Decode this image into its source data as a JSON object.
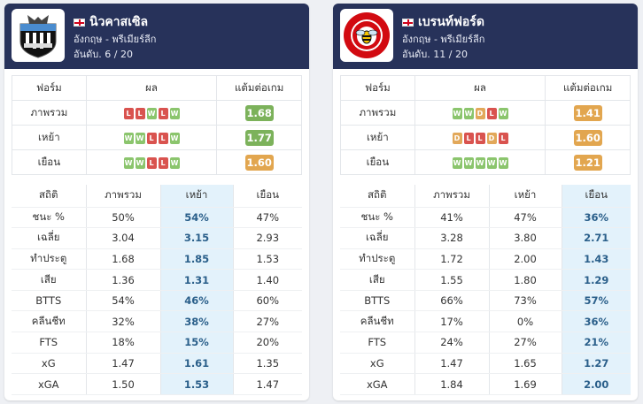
{
  "teams": [
    {
      "name": "นิวคาสเซิล",
      "country_league": "อังกฤษ - พรีเมียร์ลีก",
      "rank": "อันดับ. 6 / 20",
      "logo": "newcastle-crest-icon",
      "form_headers": [
        "ฟอร์ม",
        "ผล",
        "แต้มต่อเกม"
      ],
      "form_rows": [
        {
          "label": "ภาพรวม",
          "results": [
            "L",
            "L",
            "W",
            "L",
            "W"
          ],
          "ppg": "1.68",
          "ppg_color": "green"
        },
        {
          "label": "เหย้า",
          "results": [
            "W",
            "W",
            "L",
            "L",
            "W"
          ],
          "ppg": "1.77",
          "ppg_color": "green"
        },
        {
          "label": "เยือน",
          "results": [
            "W",
            "W",
            "L",
            "L",
            "W"
          ],
          "ppg": "1.60",
          "ppg_color": "orange"
        }
      ],
      "stat_headers": [
        "สถิติ",
        "ภาพรวม",
        "เหย้า",
        "เยือน"
      ],
      "highlight_col": 2,
      "stat_rows": [
        [
          "ชนะ %",
          "50%",
          "54%",
          "47%"
        ],
        [
          "เฉลี่ย",
          "3.04",
          "3.15",
          "2.93"
        ],
        [
          "ทำประตู",
          "1.68",
          "1.85",
          "1.53"
        ],
        [
          "เสีย",
          "1.36",
          "1.31",
          "1.40"
        ],
        [
          "BTTS",
          "54%",
          "46%",
          "60%"
        ],
        [
          "คลีนชีท",
          "32%",
          "38%",
          "27%"
        ],
        [
          "FTS",
          "18%",
          "15%",
          "20%"
        ],
        [
          "xG",
          "1.47",
          "1.61",
          "1.35"
        ],
        [
          "xGA",
          "1.50",
          "1.53",
          "1.47"
        ]
      ]
    },
    {
      "name": "เบรนท์ฟอร์ด",
      "country_league": "อังกฤษ - พรีเมียร์ลีก",
      "rank": "อันดับ. 11 / 20",
      "logo": "brentford-bee-crest-icon",
      "form_headers": [
        "ฟอร์ม",
        "ผล",
        "แต้มต่อเกม"
      ],
      "form_rows": [
        {
          "label": "ภาพรวม",
          "results": [
            "W",
            "W",
            "D",
            "L",
            "W"
          ],
          "ppg": "1.41",
          "ppg_color": "orange"
        },
        {
          "label": "เหย้า",
          "results": [
            "D",
            "L",
            "L",
            "D",
            "L"
          ],
          "ppg": "1.60",
          "ppg_color": "orange"
        },
        {
          "label": "เยือน",
          "results": [
            "W",
            "W",
            "W",
            "W",
            "W"
          ],
          "ppg": "1.21",
          "ppg_color": "orange"
        }
      ],
      "stat_headers": [
        "สถิติ",
        "ภาพรวม",
        "เหย้า",
        "เยือน"
      ],
      "highlight_col": 3,
      "stat_rows": [
        [
          "ชนะ %",
          "41%",
          "47%",
          "36%"
        ],
        [
          "เฉลี่ย",
          "3.28",
          "3.80",
          "2.71"
        ],
        [
          "ทำประตู",
          "1.72",
          "2.00",
          "1.43"
        ],
        [
          "เสีย",
          "1.55",
          "1.80",
          "1.29"
        ],
        [
          "BTTS",
          "66%",
          "73%",
          "57%"
        ],
        [
          "คลีนชีท",
          "17%",
          "0%",
          "36%"
        ],
        [
          "FTS",
          "24%",
          "27%",
          "21%"
        ],
        [
          "xG",
          "1.47",
          "1.65",
          "1.27"
        ],
        [
          "xGA",
          "1.84",
          "1.69",
          "2.00"
        ]
      ]
    }
  ],
  "colors": {
    "header_bg": "#27325a",
    "win": "#8bc56d",
    "loss": "#d9534f",
    "draw": "#e2a85a",
    "ppg_green": "#7cb25b",
    "ppg_orange": "#e2a64f",
    "highlight_bg": "#e3f2fb",
    "highlight_text": "#2a5f8a"
  }
}
